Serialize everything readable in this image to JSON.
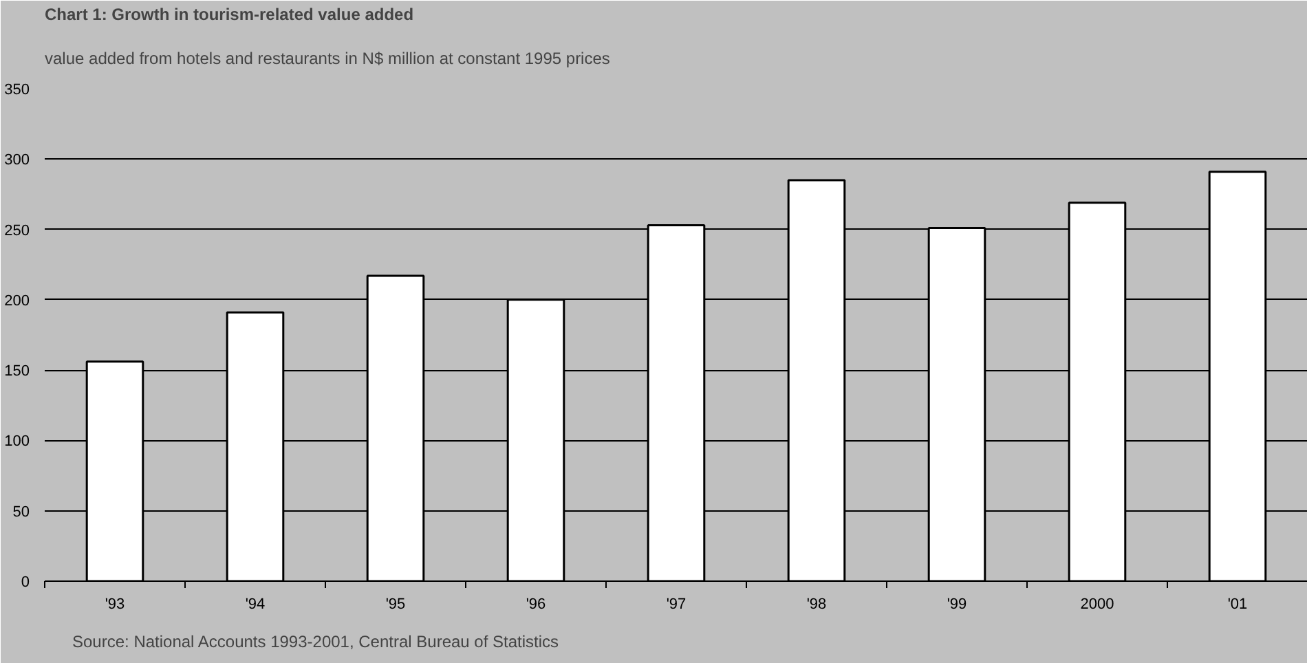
{
  "chart_data": {
    "type": "bar",
    "title": "Chart 1: Growth in tourism-related value added",
    "subtitle": "value added from hotels and restaurants in N$ million at constant 1995 prices",
    "categories": [
      "'93",
      "'94",
      "'95",
      "'96",
      "'97",
      "'98",
      "'99",
      "2000",
      "'01"
    ],
    "values": [
      156,
      191,
      217,
      200,
      253,
      285,
      251,
      269,
      291
    ],
    "color": "#ffffff",
    "ylim": [
      0,
      350
    ],
    "yticks": [
      0,
      50,
      100,
      150,
      200,
      250,
      300,
      350
    ],
    "grid": "y",
    "annotations": [
      "Source: National Accounts 1993-2001, Central Bureau of Statistics"
    ]
  }
}
